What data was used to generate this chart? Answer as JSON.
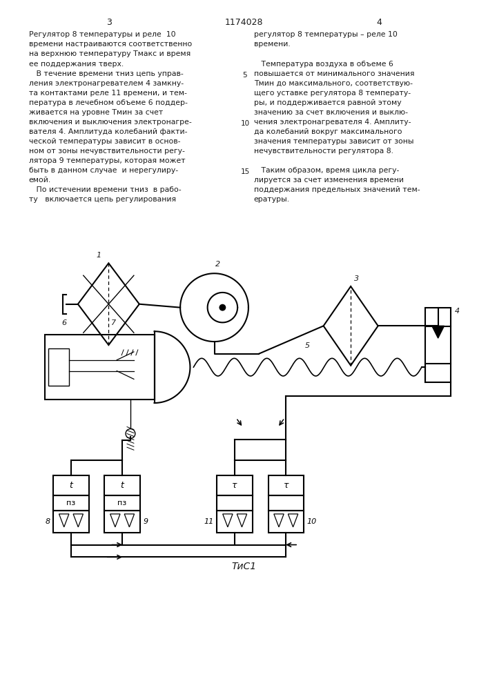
{
  "page_width": 7.07,
  "page_height": 10.0,
  "bg_color": "#ffffff",
  "text_color": "#1a1a1a",
  "col1_lines": [
    "Регулятор 8 температуры и реле  10",
    "времени настраиваются соответственно",
    "на верхнюю температуру Тмакс и время",
    "ее поддержания τверх.",
    "   В течение времени τниз цепь управ-",
    "ления электронагревателем 4 замкну-",
    "та контактами реле 11 времени, и тем-",
    "пература в лечебном объеме 6 поддер-",
    "живается на уровне Тмин за счет",
    "включения и выключения электронагре-",
    "вателя 4. Амплитуда колебаний факти-",
    "ческой температуры зависит в основ-",
    "ном от зоны нечувствительности регу-",
    "лятора 9 температуры, которая может",
    "быть в данном случае  и нерегулиру-",
    "емой.",
    "   По истечении времени τниз  в рабо-",
    "ту   включается цепь регулирования"
  ],
  "col2_lines": [
    "регулятор 8 температуры – реле 10",
    "времени.",
    "",
    "   Температура воздуха в объеме 6",
    "повышается от минимального значения",
    "Тмин до максимального, соответствую-",
    "щего уставке регулятора 8 температу-",
    "ры, и поддерживается равной этому",
    "значению за счет включения и выклю-",
    "чения электронагревателя 4. Амплиту-",
    "да колебаний вокруг максимального",
    "значения температуры зависит от зоны",
    "нечувствительности регулятора 8.",
    "",
    "   Таким образом, время цикла регу-",
    "лируется за счет изменения времени",
    "поддержания предельных значений тем-",
    "ературы."
  ],
  "fig_caption": "ΤиС1"
}
